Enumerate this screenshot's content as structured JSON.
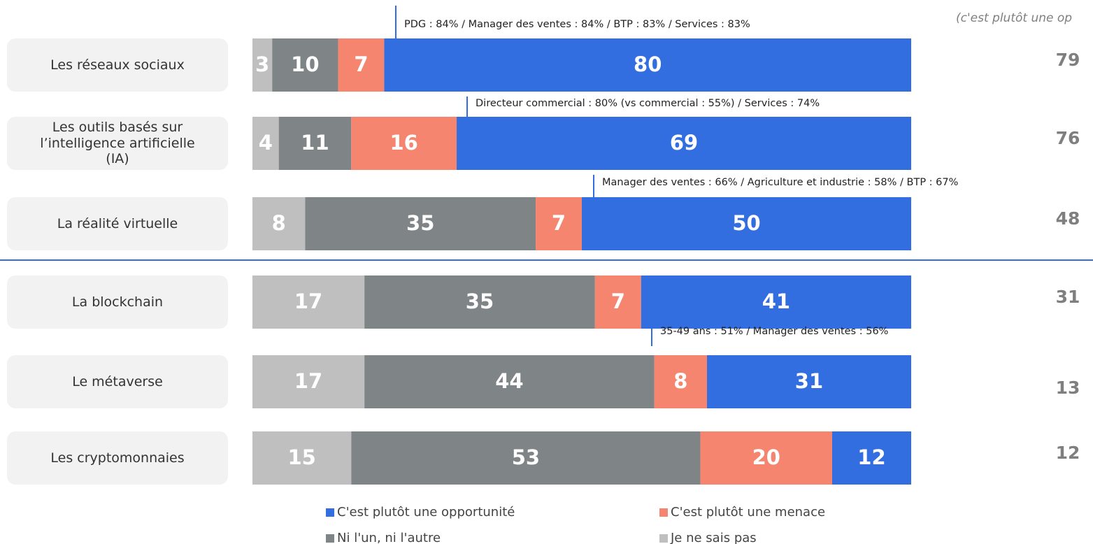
{
  "chart_data": {
    "type": "bar",
    "orientation": "horizontal",
    "stacked": true,
    "categories": [
      "Les réseaux sociaux",
      "Les outils basés sur l’intelligence artificielle (IA)",
      "La réalité virtuelle",
      "La blockchain",
      "Le métaverse",
      "Les cryptomonnaies"
    ],
    "series": [
      {
        "name": "C'est plutôt une opportunité",
        "color": "#336ee0",
        "values": [
          80,
          69,
          50,
          41,
          31,
          12
        ]
      },
      {
        "name": "C'est plutôt une menace",
        "color": "#f5856f",
        "values": [
          7,
          16,
          7,
          7,
          8,
          20
        ]
      },
      {
        "name": "Ni l'un, ni l'autre",
        "color": "#7f8486",
        "values": [
          10,
          11,
          35,
          35,
          44,
          53
        ]
      },
      {
        "name": "Je ne sais pas",
        "color": "#bfbfbf",
        "values": [
          3,
          4,
          8,
          17,
          17,
          15
        ]
      }
    ],
    "xlim": [
      0,
      100
    ],
    "right_header": "(c'est plutôt une op",
    "right_values": [
      79,
      76,
      48,
      31,
      13,
      12
    ],
    "annotations": [
      "PDG : 84% / Manager des ventes : 84% / BTP : 83% / Services : 83%",
      "Directeur commercial : 80% (vs commercial : 55%) / Services : 74%",
      "Manager des ventes : 66% / Agriculture et industrie : 58% / BTP : 67%",
      "35-49 ans : 51% / Manager des ventes : 56%"
    ]
  }
}
